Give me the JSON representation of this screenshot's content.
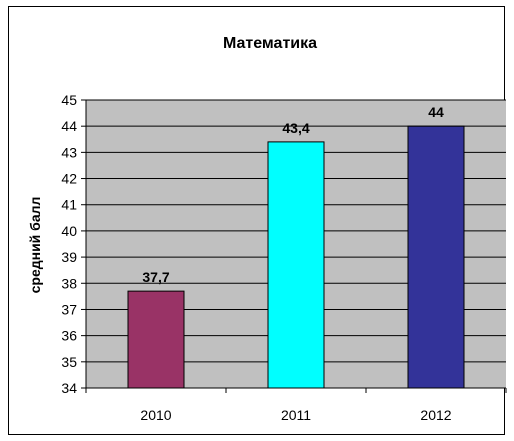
{
  "chart_data": {
    "type": "bar",
    "title": "Математика",
    "xlabel": "",
    "ylabel": "средний балл",
    "categories": [
      "2010",
      "2011",
      "2012"
    ],
    "values": [
      37.7,
      43.4,
      44
    ],
    "data_labels": [
      "37,7",
      "43,4",
      "44"
    ],
    "colors": [
      "#993366",
      "#00FFFF",
      "#333399"
    ],
    "ylim": [
      34,
      45
    ],
    "yticks": [
      "34",
      "35",
      "36",
      "37",
      "38",
      "39",
      "40",
      "41",
      "42",
      "43",
      "44",
      "45"
    ],
    "grid": true,
    "plot_background": "#C0C0C0",
    "legend": "none"
  }
}
